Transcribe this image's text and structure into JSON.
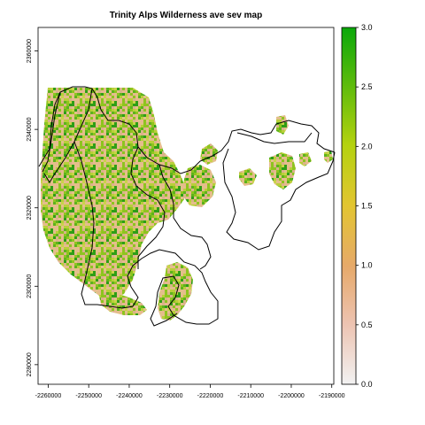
{
  "title": "Trinity Alps Wilderness ave sev map",
  "map": {
    "x_range": [
      -2262500,
      -2189500
    ],
    "y_range": [
      2275000,
      2366000
    ],
    "x_ticks": [
      {
        "value": -2260000,
        "label": "-2260000"
      },
      {
        "value": -2250000,
        "label": "-2250000"
      },
      {
        "value": -2240000,
        "label": "-2240000"
      },
      {
        "value": -2230000,
        "label": "-2230000"
      },
      {
        "value": -2220000,
        "label": "-2220000"
      },
      {
        "value": -2210000,
        "label": "-2210000"
      },
      {
        "value": -2200000,
        "label": "-2200000"
      },
      {
        "value": -2190000,
        "label": "-2190000"
      }
    ],
    "y_ticks": [
      {
        "value": 2280000,
        "label": "2280000"
      },
      {
        "value": 2300000,
        "label": "2300000"
      },
      {
        "value": 2320000,
        "label": "2320000"
      },
      {
        "value": 2340000,
        "label": "2340000"
      },
      {
        "value": 2360000,
        "label": "2360000"
      }
    ]
  },
  "legend": {
    "min": 0.0,
    "max": 3.0,
    "ticks": [
      {
        "value": 0.0,
        "label": "0.0"
      },
      {
        "value": 0.5,
        "label": "0.5"
      },
      {
        "value": 1.0,
        "label": "1.0"
      },
      {
        "value": 1.5,
        "label": "1.5"
      },
      {
        "value": 2.0,
        "label": "2.0"
      },
      {
        "value": 2.5,
        "label": "2.5"
      },
      {
        "value": 3.0,
        "label": "3.0"
      }
    ],
    "colors": [
      {
        "stop": 0.0,
        "color": "#f2f2f2"
      },
      {
        "stop": 0.17,
        "color": "#edc3b1"
      },
      {
        "stop": 0.33,
        "color": "#e6a96a"
      },
      {
        "stop": 0.5,
        "color": "#e3c531"
      },
      {
        "stop": 0.67,
        "color": "#b4d20f"
      },
      {
        "stop": 0.83,
        "color": "#62bc0c"
      },
      {
        "stop": 1.0,
        "color": "#0aa80a"
      }
    ]
  },
  "severity_palette": [
    "#d9b38a",
    "#e3c08a",
    "#b8cf3a",
    "#8ec41f",
    "#5db31c",
    "#2e9e16",
    "#c9d34a",
    "#e6b98f"
  ],
  "boundary_color": "#000000"
}
